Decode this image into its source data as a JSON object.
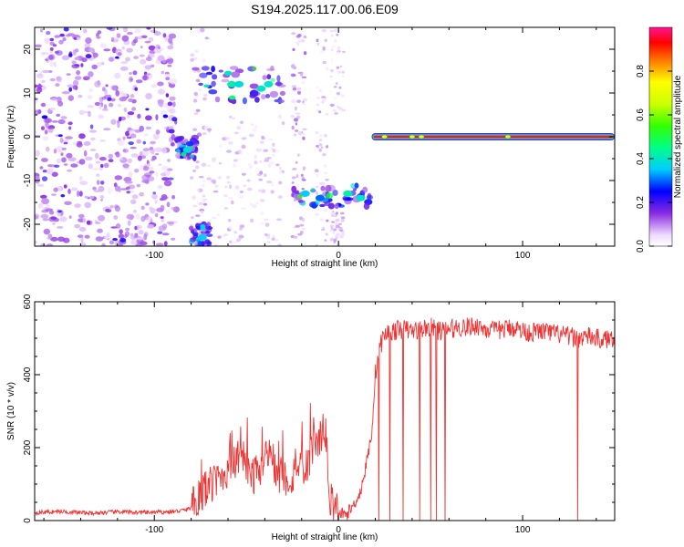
{
  "title": "S194.2025.117.00.06.E09",
  "chart_data": [
    {
      "type": "heatmap",
      "xlabel": "Height of straight line (km)",
      "ylabel": "Frequency (Hz)",
      "xlim": [
        -165,
        150
      ],
      "ylim": [
        -25,
        25
      ],
      "xticks": [
        -100,
        0,
        100
      ],
      "yticks": [
        -20,
        -10,
        0,
        10,
        20
      ],
      "grid": false,
      "colorbar": {
        "label": "Normalized spectral amplitude",
        "range": [
          0.0,
          1.0
        ],
        "ticks": [
          0.0,
          0.2,
          0.4,
          0.6,
          0.8
        ]
      },
      "features": [
        {
          "x_range": [
            -165,
            -90
          ],
          "freq_range": [
            -25,
            25
          ],
          "amplitude": 0.15
        },
        {
          "x_range": [
            -78,
            -28
          ],
          "freq_range": [
            8,
            16
          ],
          "amplitude": 0.45
        },
        {
          "x_range": [
            -88,
            -77
          ],
          "freq_range": [
            -5,
            0
          ],
          "amplitude": 0.4
        },
        {
          "x_range": [
            -80,
            -70
          ],
          "freq_range": [
            -25,
            -20
          ],
          "amplitude": 0.4
        },
        {
          "x_range": [
            -25,
            18
          ],
          "freq_range": [
            -16,
            -11
          ],
          "amplitude": 0.45
        },
        {
          "x_range": [
            18,
            150
          ],
          "freq_range": [
            -0.7,
            0.7
          ],
          "amplitude": 1.0
        }
      ]
    },
    {
      "type": "line",
      "xlabel": "Height of straight line (km)",
      "ylabel": "SNR (10 * v/v)",
      "xlim": [
        -165,
        150
      ],
      "ylim": [
        0,
        600
      ],
      "xticks": [
        -100,
        0,
        100
      ],
      "yticks": [
        0,
        200,
        400,
        600
      ],
      "grid": false,
      "series": [
        {
          "color": "#ee3333",
          "x": [
            -165,
            -150,
            -135,
            -120,
            -105,
            -90,
            -82,
            -78,
            -74,
            -70,
            -66,
            -62,
            -58,
            -54,
            -50,
            -46,
            -42,
            -38,
            -34,
            -30,
            -26,
            -22,
            -18,
            -14,
            -10,
            -7,
            -5,
            -3,
            0,
            4,
            8,
            12,
            15,
            18,
            20,
            22,
            25,
            30,
            35,
            40,
            45,
            50,
            55,
            60,
            65,
            70,
            75,
            80,
            85,
            90,
            95,
            100,
            105,
            110,
            115,
            120,
            125,
            130,
            135,
            140,
            145,
            150
          ],
          "y": [
            22,
            25,
            20,
            24,
            22,
            24,
            30,
            45,
            80,
            95,
            110,
            130,
            150,
            170,
            140,
            120,
            150,
            200,
            130,
            120,
            110,
            160,
            140,
            200,
            230,
            250,
            60,
            40,
            20,
            15,
            40,
            80,
            150,
            240,
            400,
            470,
            510,
            520,
            525,
            520,
            525,
            530,
            520,
            525,
            530,
            530,
            535,
            525,
            520,
            525,
            530,
            520,
            515,
            520,
            515,
            510,
            505,
            500,
            505,
            500,
            495,
            505
          ]
        }
      ],
      "dropouts_x": [
        22,
        28,
        35,
        44,
        50,
        53,
        58,
        130
      ]
    }
  ]
}
